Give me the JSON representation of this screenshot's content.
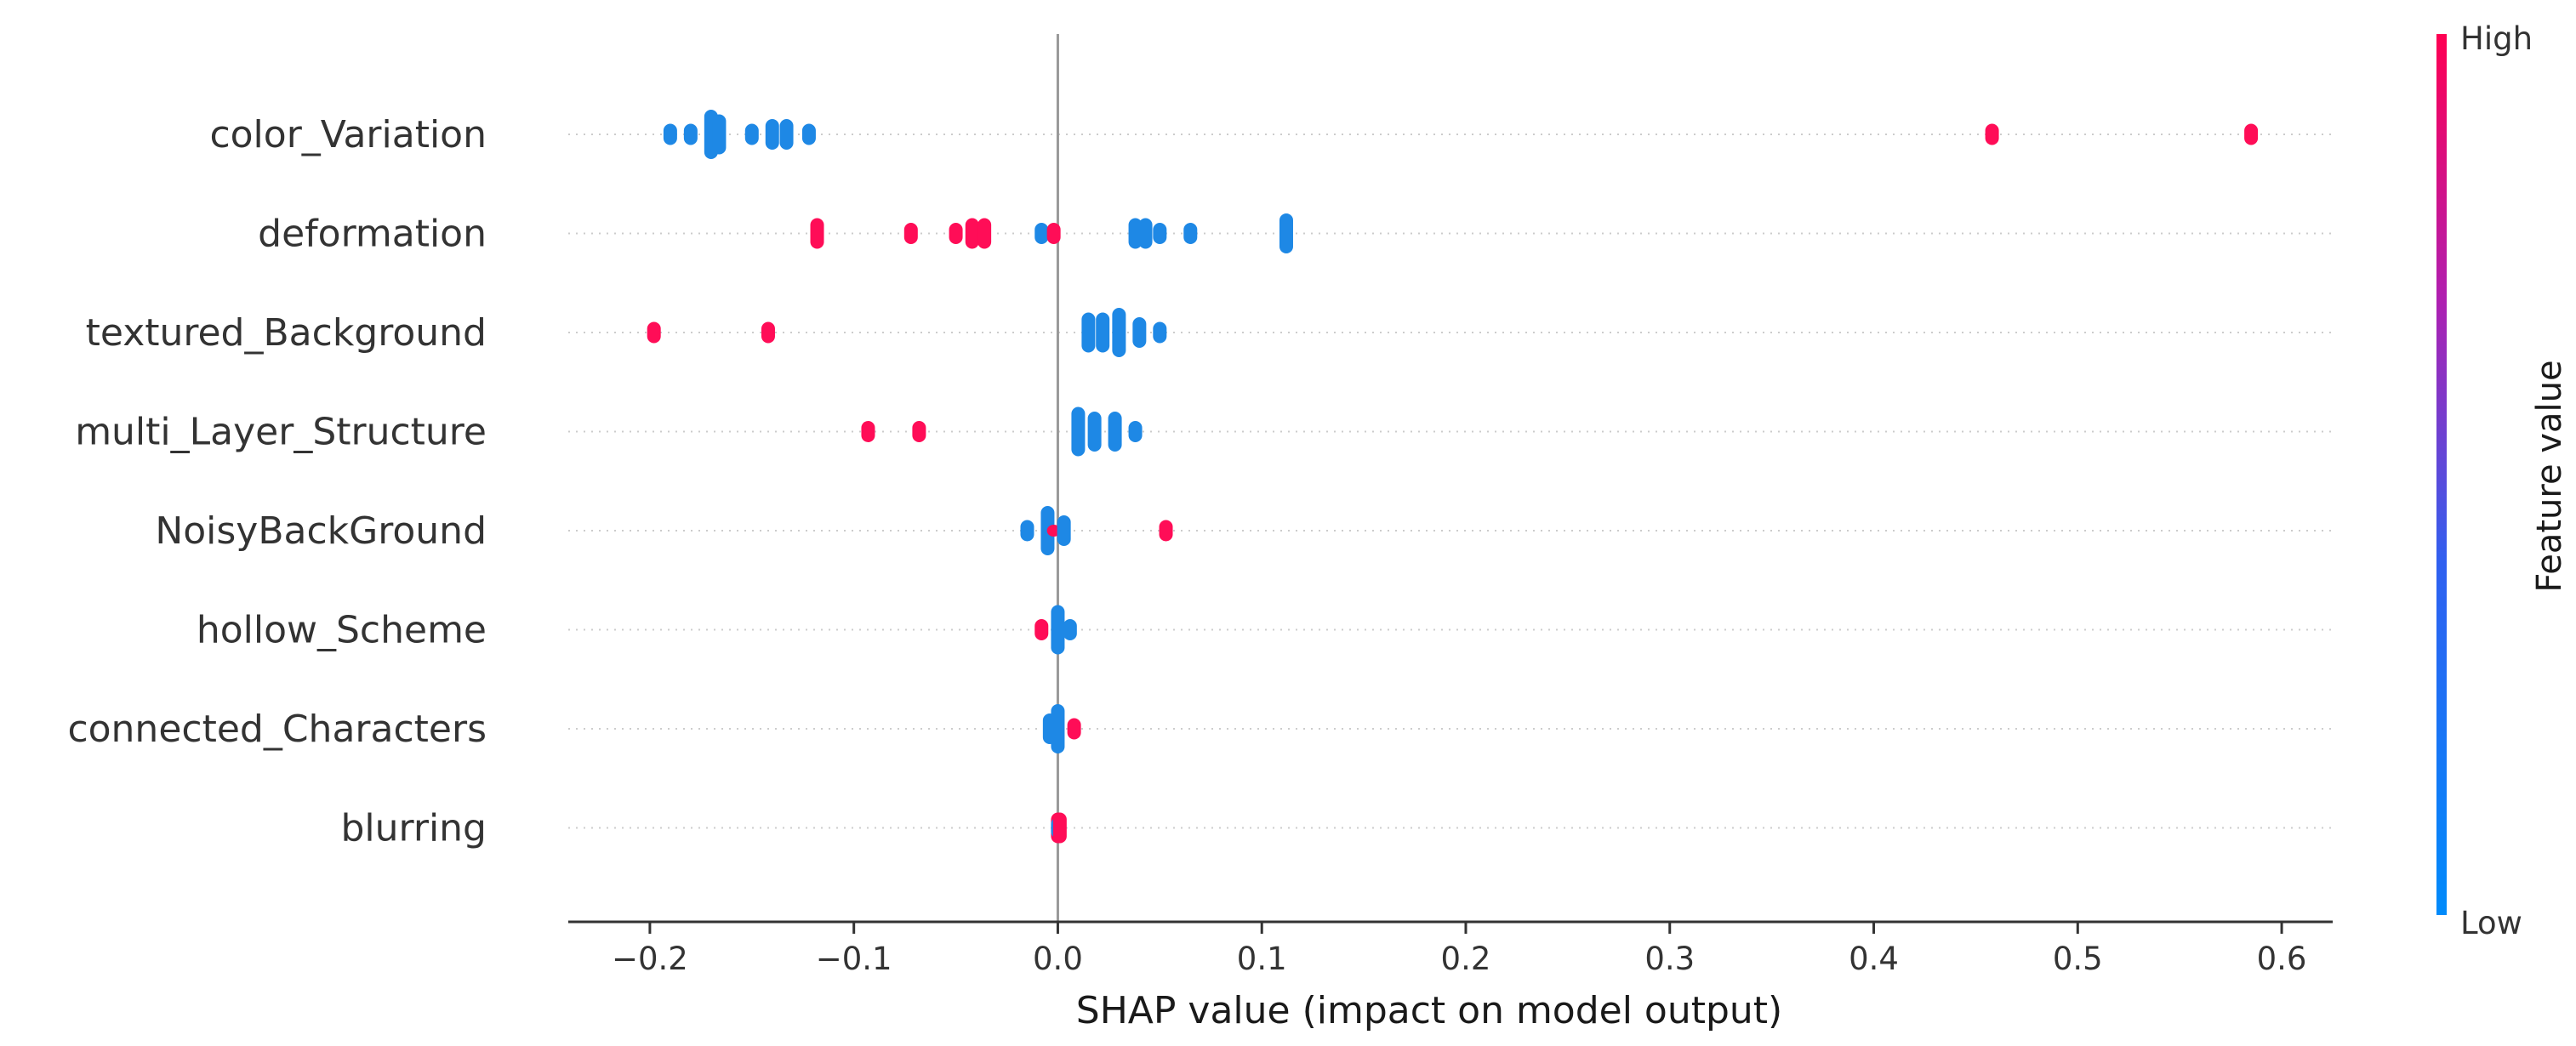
{
  "chart_data": {
    "type": "scatter",
    "subtype": "shap-beeswarm",
    "xlabel": "SHAP value (impact on model output)",
    "xlim": [
      -0.24,
      0.625
    ],
    "xticks": [
      -0.2,
      -0.1,
      0.0,
      0.1,
      0.2,
      0.3,
      0.4,
      0.5,
      0.6
    ],
    "xtick_labels": [
      "−0.2",
      "−0.1",
      "0.0",
      "0.1",
      "0.2",
      "0.3",
      "0.4",
      "0.5",
      "0.6"
    ],
    "colorbar": {
      "title": "Feature value",
      "high_label": "High",
      "low_label": "Low",
      "high_color": "#ff0052",
      "low_color": "#008bfb"
    },
    "colors": {
      "high": "#ff0d57",
      "low": "#1e88e5"
    },
    "features": [
      {
        "name": "color_Variation",
        "points": [
          {
            "x": -0.19,
            "v": 0,
            "n": 2
          },
          {
            "x": -0.18,
            "v": 0,
            "n": 2
          },
          {
            "x": -0.17,
            "v": 0,
            "n": 5
          },
          {
            "x": -0.166,
            "v": 0,
            "n": 4
          },
          {
            "x": -0.15,
            "v": 0,
            "n": 2
          },
          {
            "x": -0.14,
            "v": 0,
            "n": 3
          },
          {
            "x": -0.133,
            "v": 0,
            "n": 3
          },
          {
            "x": -0.122,
            "v": 0,
            "n": 2
          },
          {
            "x": 0.458,
            "v": 1,
            "n": 2
          },
          {
            "x": 0.585,
            "v": 1,
            "n": 2
          }
        ]
      },
      {
        "name": "deformation",
        "points": [
          {
            "x": -0.118,
            "v": 1,
            "n": 3
          },
          {
            "x": -0.072,
            "v": 1,
            "n": 2
          },
          {
            "x": -0.05,
            "v": 1,
            "n": 2
          },
          {
            "x": -0.042,
            "v": 1,
            "n": 3
          },
          {
            "x": -0.036,
            "v": 1,
            "n": 3
          },
          {
            "x": -0.008,
            "v": 0,
            "n": 2
          },
          {
            "x": -0.002,
            "v": 1,
            "n": 2
          },
          {
            "x": 0.038,
            "v": 0,
            "n": 3
          },
          {
            "x": 0.043,
            "v": 0,
            "n": 3
          },
          {
            "x": 0.05,
            "v": 0,
            "n": 2
          },
          {
            "x": 0.065,
            "v": 0,
            "n": 2
          },
          {
            "x": 0.112,
            "v": 0,
            "n": 4
          }
        ]
      },
      {
        "name": "textured_Background",
        "points": [
          {
            "x": -0.198,
            "v": 1,
            "n": 2
          },
          {
            "x": -0.142,
            "v": 1,
            "n": 2
          },
          {
            "x": 0.015,
            "v": 0,
            "n": 4
          },
          {
            "x": 0.022,
            "v": 0,
            "n": 4
          },
          {
            "x": 0.03,
            "v": 0,
            "n": 5
          },
          {
            "x": 0.04,
            "v": 0,
            "n": 3
          },
          {
            "x": 0.05,
            "v": 0,
            "n": 2
          }
        ]
      },
      {
        "name": "multi_Layer_Structure",
        "points": [
          {
            "x": -0.093,
            "v": 1,
            "n": 2
          },
          {
            "x": -0.068,
            "v": 1,
            "n": 2
          },
          {
            "x": 0.01,
            "v": 0,
            "n": 5
          },
          {
            "x": 0.018,
            "v": 0,
            "n": 4
          },
          {
            "x": 0.028,
            "v": 0,
            "n": 4
          },
          {
            "x": 0.038,
            "v": 0,
            "n": 2
          }
        ]
      },
      {
        "name": "NoisyBackGround",
        "points": [
          {
            "x": -0.015,
            "v": 0,
            "n": 2
          },
          {
            "x": -0.005,
            "v": 0,
            "n": 5
          },
          {
            "x": -0.002,
            "v": 1,
            "n": 1
          },
          {
            "x": 0.003,
            "v": 0,
            "n": 3
          },
          {
            "x": 0.053,
            "v": 1,
            "n": 2
          }
        ]
      },
      {
        "name": "hollow_Scheme",
        "points": [
          {
            "x": -0.008,
            "v": 1,
            "n": 2
          },
          {
            "x": 0.0,
            "v": 0,
            "n": 5
          },
          {
            "x": 0.006,
            "v": 0,
            "n": 2
          }
        ]
      },
      {
        "name": "connected_Characters",
        "points": [
          {
            "x": -0.004,
            "v": 0,
            "n": 3
          },
          {
            "x": 0.0,
            "v": 0,
            "n": 5
          },
          {
            "x": 0.008,
            "v": 1,
            "n": 2
          }
        ]
      },
      {
        "name": "blurring",
        "points": [
          {
            "x": 0.0,
            "v": 1,
            "n": 3
          },
          {
            "x": 0.0,
            "v": 0,
            "n": 2
          },
          {
            "x": 0.001,
            "v": 1,
            "n": 3
          }
        ]
      }
    ]
  }
}
